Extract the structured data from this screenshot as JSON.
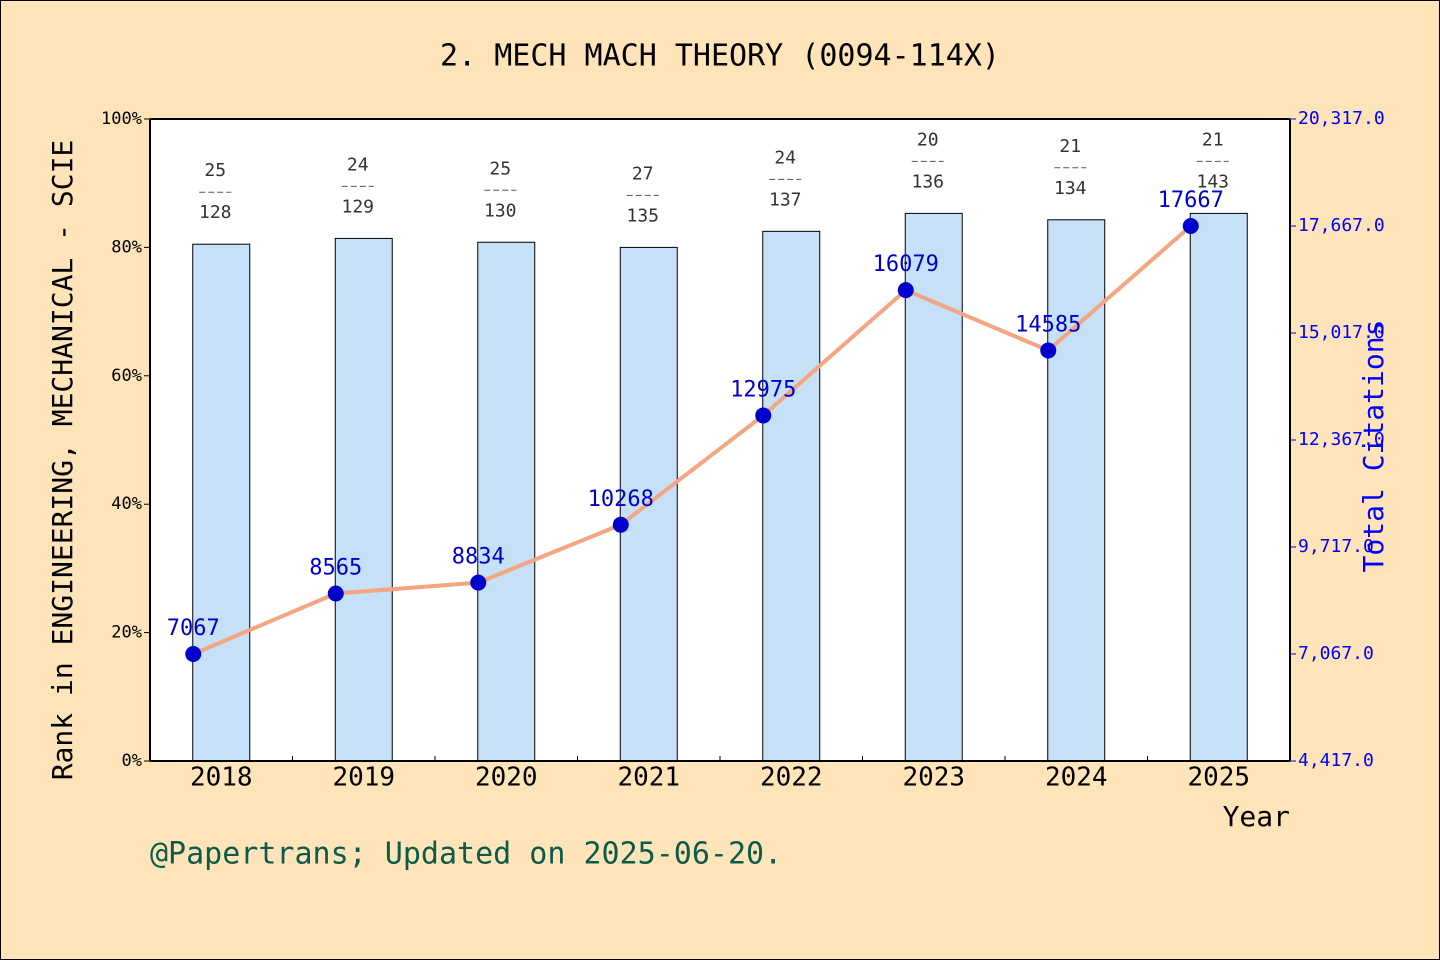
{
  "chart_data": {
    "type": "bar",
    "title": "2. MECH MACH THEORY (0094-114X)",
    "x_label": "Year",
    "y_label": "Rank in ENGINEERING, MECHANICAL - SCIE",
    "y2_label": "Total Citations",
    "footer": "@Papertrans; Updated on 2025-06-20.",
    "categories": [
      "2018",
      "2019",
      "2020",
      "2021",
      "2022",
      "2023",
      "2024",
      "2025"
    ],
    "bars": {
      "color": "#c6e0f7",
      "values": [
        80.5,
        81.4,
        80.8,
        80.0,
        82.5,
        85.3,
        84.3,
        85.3
      ],
      "ranks": [
        25,
        24,
        25,
        27,
        24,
        20,
        21,
        21
      ],
      "totals": [
        128,
        129,
        130,
        135,
        137,
        136,
        134,
        143
      ]
    },
    "line": {
      "color": "#f4a582",
      "marker_color": "#0000cc",
      "axis": "y2",
      "values": [
        7067,
        8565,
        8834,
        10268,
        12975,
        16079,
        14585,
        17667
      ]
    },
    "ylim": [
      0,
      100
    ],
    "yticks": [
      {
        "value": 0,
        "label": "0%"
      },
      {
        "value": 20,
        "label": "20%"
      },
      {
        "value": 40,
        "label": "40%"
      },
      {
        "value": 60,
        "label": "60%"
      },
      {
        "value": 80,
        "label": "80%"
      },
      {
        "value": 100,
        "label": "100%"
      }
    ],
    "y2lim": [
      4417,
      20317
    ],
    "y2ticks": [
      {
        "value": 4417,
        "label": "4,417.0"
      },
      {
        "value": 7067,
        "label": "7,067.0"
      },
      {
        "value": 9717,
        "label": "9,717.0"
      },
      {
        "value": 12367,
        "label": "12,367.0"
      },
      {
        "value": 15017,
        "label": "15,017.0"
      },
      {
        "value": 17667,
        "label": "17,667.0"
      },
      {
        "value": 20317,
        "label": "20,317.0"
      }
    ]
  }
}
